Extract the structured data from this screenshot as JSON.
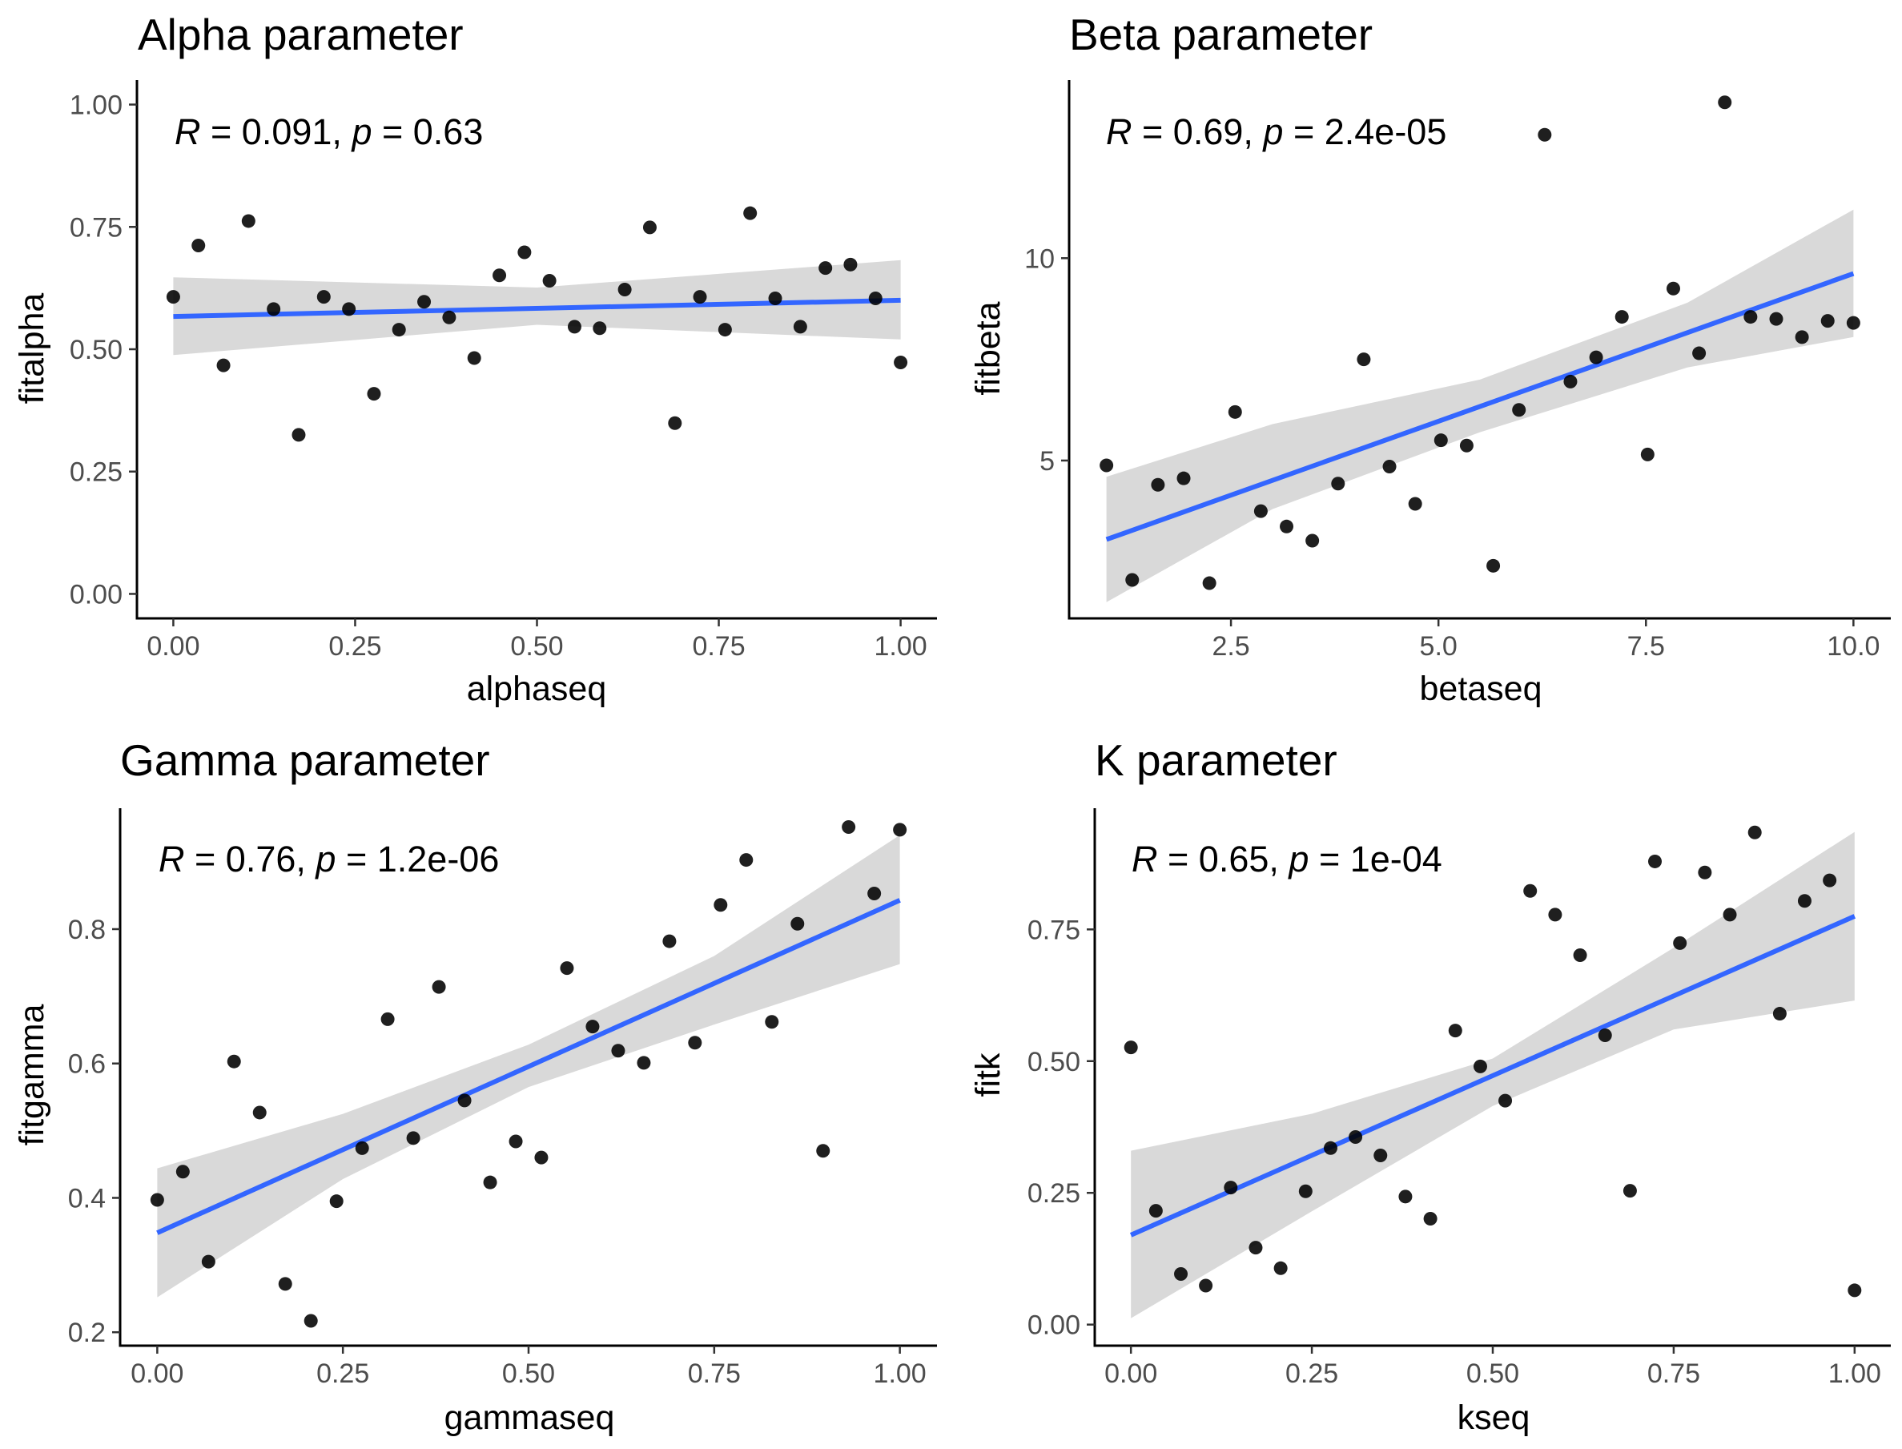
{
  "figure": {
    "panels": [
      {
        "stat": {
          "R": "0.091",
          "p": "0.63"
        }
      },
      {
        "stat": {
          "R": "0.69",
          "p": "2.4e-05"
        }
      },
      {
        "stat": {
          "R": "0.76",
          "p": "1.2e-06"
        }
      },
      {
        "stat": {
          "R": "0.65",
          "p": "1e-04"
        }
      }
    ]
  },
  "chart_data": [
    {
      "type": "scatter",
      "title": "Alpha parameter",
      "xlabel": "alphaseq",
      "ylabel": "fitalpha",
      "xlim": [
        -0.05,
        1.05
      ],
      "ylim": [
        -0.05,
        1.05
      ],
      "xticks": [
        0,
        0.25,
        0.5,
        0.75,
        1
      ],
      "xtick_labels": [
        "0.00",
        "0.25",
        "0.50",
        "0.75",
        "1.00"
      ],
      "yticks": [
        0,
        0.25,
        0.5,
        0.75,
        1
      ],
      "ytick_labels": [
        "0.00",
        "0.25",
        "0.50",
        "0.75",
        "1.00"
      ],
      "x": [
        0,
        0.0345,
        0.069,
        0.1034,
        0.1379,
        0.1724,
        0.2069,
        0.2414,
        0.2759,
        0.3103,
        0.3448,
        0.3793,
        0.4138,
        0.4483,
        0.4828,
        0.5172,
        0.5517,
        0.5862,
        0.6207,
        0.6552,
        0.6897,
        0.7241,
        0.7586,
        0.7931,
        0.8276,
        0.8621,
        0.8966,
        0.931,
        0.9655,
        1
      ],
      "y": [
        0.607,
        0.712,
        0.467,
        0.762,
        0.582,
        0.325,
        0.607,
        0.582,
        0.409,
        0.54,
        0.597,
        0.565,
        0.482,
        0.651,
        0.698,
        0.64,
        0.546,
        0.543,
        0.622,
        0.749,
        0.349,
        0.607,
        0.54,
        0.778,
        0.604,
        0.546,
        0.666,
        0.673,
        0.604,
        0.473
      ],
      "fit": {
        "x": [
          0,
          1
        ],
        "y": [
          0.567,
          0.6
        ]
      },
      "ci": {
        "x": [
          0,
          0.5,
          1
        ],
        "lower": [
          0.488,
          0.55,
          0.52
        ],
        "upper": [
          0.647,
          0.626,
          0.682
        ]
      },
      "colors": {
        "point": "#000000",
        "fit": "#3366ff",
        "ci": "#d9d9d9"
      },
      "grid": false,
      "legend": "none"
    },
    {
      "type": "scatter",
      "title": "Beta parameter",
      "xlabel": "betaseq",
      "ylabel": "fitbeta",
      "xlim": [
        0.55,
        10.45
      ],
      "ylim": [
        1.1,
        14.4
      ],
      "xticks": [
        2.5,
        5,
        7.5,
        10
      ],
      "xtick_labels": [
        "2.5",
        "5.0",
        "7.5",
        "10.0"
      ],
      "yticks": [
        5,
        10
      ],
      "ytick_labels": [
        "5",
        "10"
      ],
      "x": [
        1,
        1.31,
        1.62,
        1.93,
        2.24,
        2.55,
        2.86,
        3.17,
        3.48,
        3.79,
        4.1,
        4.41,
        4.72,
        5.03,
        5.34,
        5.66,
        5.97,
        6.28,
        6.59,
        6.9,
        7.21,
        7.52,
        7.83,
        8.14,
        8.45,
        8.76,
        9.07,
        9.38,
        9.69,
        10
      ],
      "y": [
        4.88,
        2.05,
        4.4,
        4.56,
        1.97,
        6.2,
        3.75,
        3.37,
        3.02,
        4.43,
        7.5,
        4.85,
        3.93,
        5.5,
        5.37,
        2.4,
        6.25,
        13.05,
        6.95,
        7.55,
        8.55,
        5.15,
        9.25,
        7.65,
        13.85,
        8.55,
        8.5,
        8.05,
        8.45,
        8.4
      ],
      "fit": {
        "x": [
          1,
          10
        ],
        "y": [
          3.05,
          9.62
        ]
      },
      "ci": {
        "x": [
          1,
          3,
          5.5,
          8,
          10
        ],
        "lower": [
          1.5,
          3.8,
          5.7,
          7.3,
          8.05
        ],
        "upper": [
          4.6,
          5.9,
          7.0,
          8.9,
          11.2
        ]
      },
      "colors": {
        "point": "#000000",
        "fit": "#3366ff",
        "ci": "#d9d9d9"
      },
      "grid": false,
      "legend": "none"
    },
    {
      "type": "scatter",
      "title": "Gamma parameter",
      "xlabel": "gammaseq",
      "ylabel": "fitgamma",
      "xlim": [
        -0.05,
        1.05
      ],
      "ylim": [
        0.18,
        0.98
      ],
      "xticks": [
        0,
        0.25,
        0.5,
        0.75,
        1
      ],
      "xtick_labels": [
        "0.00",
        "0.25",
        "0.50",
        "0.75",
        "1.00"
      ],
      "yticks": [
        0.2,
        0.4,
        0.6,
        0.8
      ],
      "ytick_labels": [
        "0.2",
        "0.4",
        "0.6",
        "0.8"
      ],
      "x": [
        0,
        0.0345,
        0.069,
        0.1034,
        0.1379,
        0.1724,
        0.2069,
        0.2414,
        0.2759,
        0.3103,
        0.3448,
        0.3793,
        0.4138,
        0.4483,
        0.4828,
        0.5172,
        0.5517,
        0.5862,
        0.6207,
        0.6552,
        0.6897,
        0.7241,
        0.7586,
        0.7931,
        0.8276,
        0.8621,
        0.8966,
        0.931,
        0.9655,
        1
      ],
      "y": [
        0.397,
        0.439,
        0.305,
        0.603,
        0.527,
        0.272,
        0.217,
        0.395,
        0.474,
        0.666,
        0.489,
        0.714,
        0.545,
        0.423,
        0.484,
        0.46,
        0.742,
        0.655,
        0.619,
        0.601,
        0.782,
        0.631,
        0.836,
        0.903,
        0.662,
        0.808,
        0.47,
        0.952,
        0.853,
        0.948
      ],
      "fit": {
        "x": [
          0,
          1
        ],
        "y": [
          0.348,
          0.843
        ]
      },
      "ci": {
        "x": [
          0,
          0.25,
          0.5,
          0.75,
          1
        ],
        "lower": [
          0.252,
          0.428,
          0.565,
          0.658,
          0.748
        ],
        "upper": [
          0.444,
          0.525,
          0.628,
          0.76,
          0.94
        ]
      },
      "colors": {
        "point": "#000000",
        "fit": "#3366ff",
        "ci": "#d9d9d9"
      },
      "grid": false,
      "legend": "none"
    },
    {
      "type": "scatter",
      "title": "K parameter",
      "xlabel": "kseq",
      "ylabel": "fitk",
      "xlim": [
        -0.05,
        1.05
      ],
      "ylim": [
        -0.04,
        0.98
      ],
      "xticks": [
        0,
        0.25,
        0.5,
        0.75,
        1
      ],
      "xtick_labels": [
        "0.00",
        "0.25",
        "0.50",
        "0.75",
        "1.00"
      ],
      "yticks": [
        0,
        0.25,
        0.5,
        0.75
      ],
      "ytick_labels": [
        "0.00",
        "0.25",
        "0.50",
        "0.75"
      ],
      "x": [
        0,
        0.0345,
        0.069,
        0.1034,
        0.1379,
        0.1724,
        0.2069,
        0.2414,
        0.2759,
        0.3103,
        0.3448,
        0.3793,
        0.4138,
        0.4483,
        0.4828,
        0.5172,
        0.5517,
        0.5862,
        0.6207,
        0.6552,
        0.6897,
        0.7241,
        0.7586,
        0.7931,
        0.8276,
        0.8621,
        0.8966,
        0.931,
        0.9655,
        1
      ],
      "y": [
        0.526,
        0.216,
        0.096,
        0.074,
        0.26,
        0.146,
        0.107,
        0.253,
        0.335,
        0.356,
        0.321,
        0.243,
        0.201,
        0.558,
        0.49,
        0.425,
        0.823,
        0.778,
        0.701,
        0.549,
        0.254,
        0.879,
        0.724,
        0.858,
        0.778,
        0.934,
        0.59,
        0.804,
        0.843,
        0.065
      ],
      "fit": {
        "x": [
          0,
          1
        ],
        "y": [
          0.17,
          0.775
        ]
      },
      "ci": {
        "x": [
          0,
          0.25,
          0.5,
          0.75,
          1
        ],
        "lower": [
          0.012,
          0.215,
          0.415,
          0.56,
          0.615
        ],
        "upper": [
          0.33,
          0.4,
          0.505,
          0.715,
          0.935
        ]
      },
      "colors": {
        "point": "#000000",
        "fit": "#3366ff",
        "ci": "#d9d9d9"
      },
      "grid": false,
      "legend": "none"
    }
  ]
}
